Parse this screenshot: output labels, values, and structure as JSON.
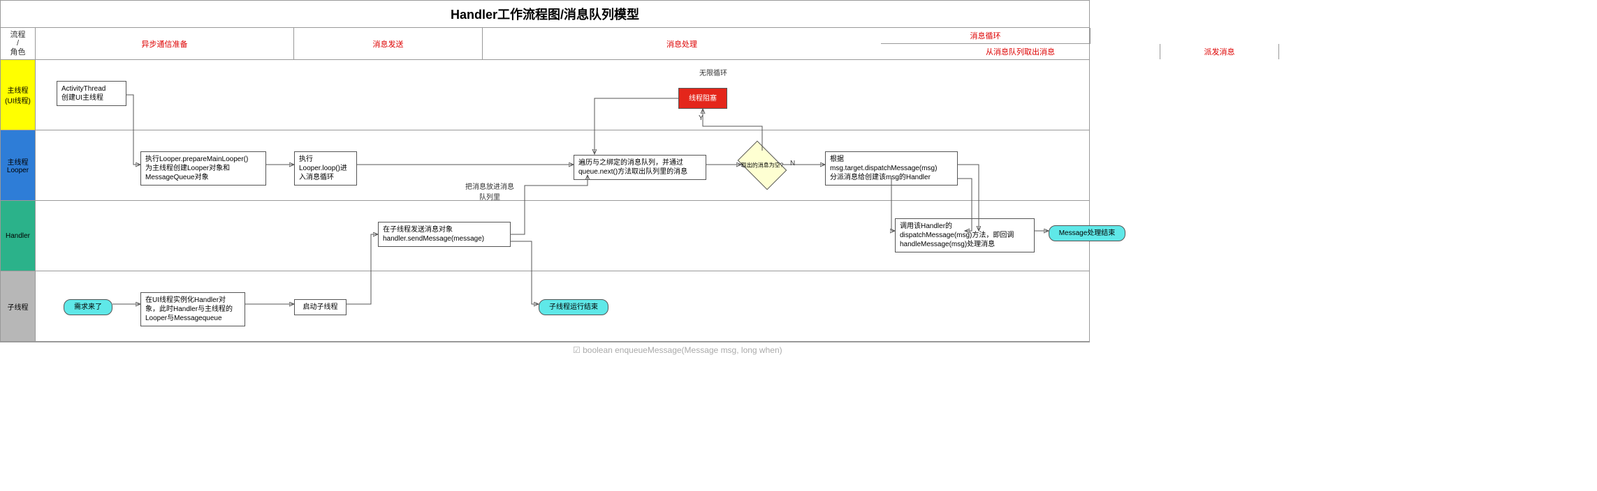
{
  "title": "Handler工作流程图/消息队列模型",
  "header": {
    "corner_top": "流程",
    "corner_mid": "/",
    "corner_bottom": "角色",
    "col_prepare": "异步通信准备",
    "col_send": "消息发送",
    "col_loop": "消息循环",
    "col_dequeue": "从消息队列取出消息",
    "col_dispatch": "派发消息",
    "col_handle": "消息处理"
  },
  "lanes": {
    "main_thread": {
      "label": "主线程\n(UI线程)",
      "color": "#ffff00"
    },
    "looper": {
      "label": "主线程Looper",
      "color": "#2e7dd7"
    },
    "handler": {
      "label": "Handler",
      "color": "#2bb28a"
    },
    "child": {
      "label": "子线程",
      "color": "#b7b7b7"
    }
  },
  "nodes": {
    "activity_thread": "ActivityThread\n创建UI主线程",
    "prepare_looper": "执行Looper.prepareMainLooper()\n为主线程创建Looper对象和\nMessageQueue对象",
    "looper_loop": "执行\nLooper.loop()进\n入消息循环",
    "traverse_queue": "遍历与之绑定的消息队列，并通过\nqueue.next()方法取出队列里的消息",
    "empty_check": "取出的消息为空?",
    "block_wait": "线程阻塞",
    "dispatch": "根据\nmsg.target.dispatchMessage(msg)\n分派消息给创建该msg的Handler",
    "call_handler": "调用该Handler的\ndispatchMessage(msg)方法，即回调\nhandleMessage(msg)处理消息",
    "msg_result": "Message处理结束",
    "demand": "需求来了",
    "instantiate": "在UI线程实例化Handler对\n象，此时Handler与主线程的\nLooper与Messagequeue",
    "start_child": "启动子线程",
    "send_msg": "在子线程发送消息对象\nhandler.sendMessage(message)",
    "child_end": "子线程运行结束"
  },
  "edge_labels": {
    "enqueue": "把消息放进消息\n队列里",
    "infinite": "无限循环",
    "y": "Y",
    "n": "N"
  },
  "colors": {
    "cyan": "#5fe8e8",
    "red": "#e4261b",
    "diamond": "#feffd2",
    "header_text": "#d00000"
  },
  "footer": "☑ boolean enqueueMessage(Message msg, long when)"
}
